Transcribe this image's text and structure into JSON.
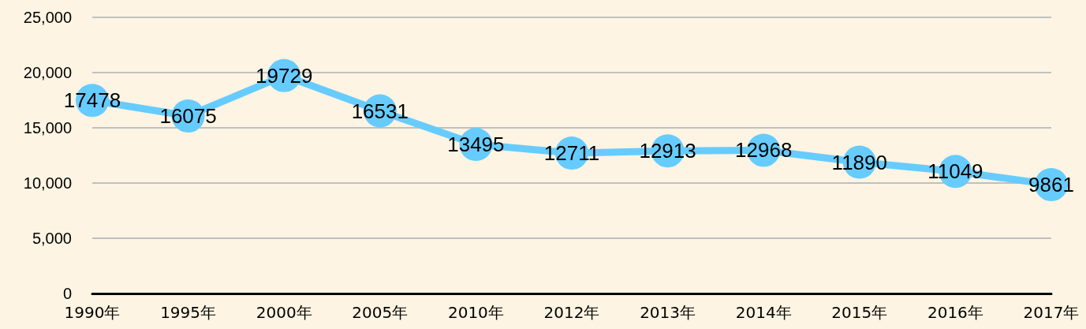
{
  "chart_data": {
    "type": "line",
    "categories": [
      "1990年",
      "1995年",
      "2000年",
      "2005年",
      "2010年",
      "2012年",
      "2013年",
      "2014年",
      "2015年",
      "2016年",
      "2017年"
    ],
    "values": [
      17478,
      16075,
      19729,
      16531,
      13495,
      12711,
      12913,
      12968,
      11890,
      11049,
      9861
    ],
    "color": "#66ccff",
    "ylim": [
      0,
      25000
    ],
    "yticks": [
      {
        "value": 0,
        "label": "0"
      },
      {
        "value": 5000,
        "label": "5,000"
      },
      {
        "value": 10000,
        "label": "10,000"
      },
      {
        "value": 15000,
        "label": "15,000"
      },
      {
        "value": 20000,
        "label": "20,000"
      },
      {
        "value": 25000,
        "label": "25,000"
      }
    ],
    "grid": "y",
    "marker": "circle",
    "line_style": "solid",
    "data_labels": true
  }
}
